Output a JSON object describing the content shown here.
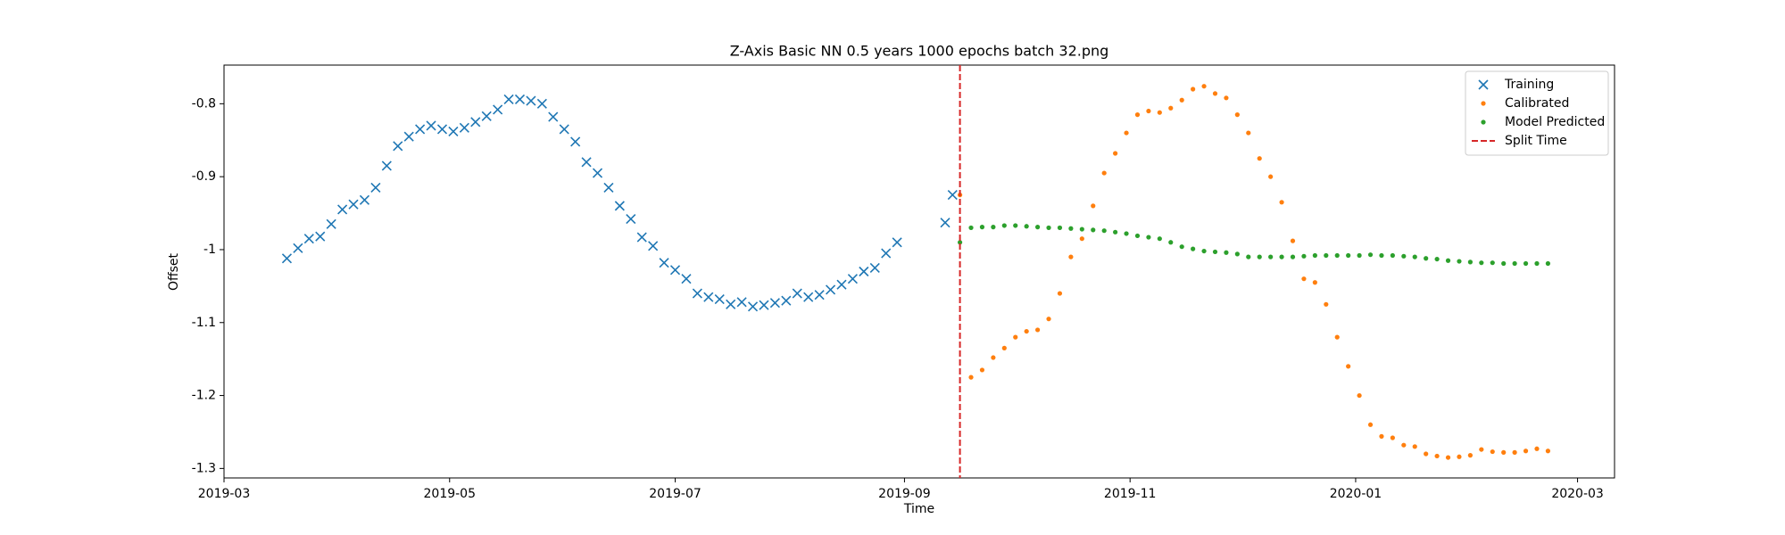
{
  "chart_data": {
    "type": "scatter",
    "title": "Z-Axis Basic NN 0.5 years 1000 epochs batch 32.png",
    "x_label": "Time",
    "y_label": "Offset",
    "xlim": [
      "2019-03-01",
      "2020-03-11"
    ],
    "ylim": [
      -1.313,
      -0.747
    ],
    "xticks": [
      {
        "value": "2019-03-01",
        "label": "2019-03"
      },
      {
        "value": "2019-05-01",
        "label": "2019-05"
      },
      {
        "value": "2019-07-01",
        "label": "2019-07"
      },
      {
        "value": "2019-09-01",
        "label": "2019-09"
      },
      {
        "value": "2019-11-01",
        "label": "2019-11"
      },
      {
        "value": "2020-01-01",
        "label": "2020-01"
      },
      {
        "value": "2020-03-01",
        "label": "2020-03"
      }
    ],
    "yticks": [
      -0.8,
      -0.9,
      -1.0,
      -1.1,
      -1.2,
      -1.3
    ],
    "legend": "upper right",
    "series": [
      {
        "name": "Training",
        "color": "#1f77b4",
        "marker": "x",
        "x": [
          "2019-03-18",
          "2019-03-21",
          "2019-03-24",
          "2019-03-27",
          "2019-03-30",
          "2019-04-02",
          "2019-04-05",
          "2019-04-08",
          "2019-04-11",
          "2019-04-14",
          "2019-04-17",
          "2019-04-20",
          "2019-04-23",
          "2019-04-26",
          "2019-04-29",
          "2019-05-02",
          "2019-05-05",
          "2019-05-08",
          "2019-05-11",
          "2019-05-14",
          "2019-05-17",
          "2019-05-20",
          "2019-05-23",
          "2019-05-26",
          "2019-05-29",
          "2019-06-01",
          "2019-06-04",
          "2019-06-07",
          "2019-06-10",
          "2019-06-13",
          "2019-06-16",
          "2019-06-19",
          "2019-06-22",
          "2019-06-25",
          "2019-06-28",
          "2019-07-01",
          "2019-07-04",
          "2019-07-07",
          "2019-07-10",
          "2019-07-13",
          "2019-07-16",
          "2019-07-19",
          "2019-07-22",
          "2019-07-25",
          "2019-07-28",
          "2019-07-31",
          "2019-08-03",
          "2019-08-06",
          "2019-08-09",
          "2019-08-12",
          "2019-08-15",
          "2019-08-18",
          "2019-08-21",
          "2019-08-24",
          "2019-08-27",
          "2019-08-30",
          "2019-09-12",
          "2019-09-14"
        ],
        "values": [
          -1.012,
          -0.998,
          -0.985,
          -0.982,
          -0.965,
          -0.945,
          -0.938,
          -0.932,
          -0.915,
          -0.885,
          -0.858,
          -0.845,
          -0.835,
          -0.83,
          -0.835,
          -0.838,
          -0.833,
          -0.825,
          -0.817,
          -0.808,
          -0.794,
          -0.794,
          -0.796,
          -0.8,
          -0.818,
          -0.835,
          -0.852,
          -0.88,
          -0.895,
          -0.915,
          -0.94,
          -0.958,
          -0.983,
          -0.995,
          -1.018,
          -1.028,
          -1.04,
          -1.06,
          -1.065,
          -1.068,
          -1.075,
          -1.072,
          -1.078,
          -1.076,
          -1.073,
          -1.07,
          -1.06,
          -1.065,
          -1.062,
          -1.055,
          -1.048,
          -1.04,
          -1.03,
          -1.025,
          -1.005,
          -0.99,
          -0.963,
          -0.925
        ]
      },
      {
        "name": "Calibrated",
        "color": "#ff7f0e",
        "marker": "dot",
        "x": [
          "2019-09-16",
          "2019-09-19",
          "2019-09-22",
          "2019-09-25",
          "2019-09-28",
          "2019-10-01",
          "2019-10-04",
          "2019-10-07",
          "2019-10-10",
          "2019-10-13",
          "2019-10-16",
          "2019-10-19",
          "2019-10-22",
          "2019-10-25",
          "2019-10-28",
          "2019-10-31",
          "2019-11-03",
          "2019-11-06",
          "2019-11-09",
          "2019-11-12",
          "2019-11-15",
          "2019-11-18",
          "2019-11-21",
          "2019-11-24",
          "2019-11-27",
          "2019-11-30",
          "2019-12-03",
          "2019-12-06",
          "2019-12-09",
          "2019-12-12",
          "2019-12-15",
          "2019-12-18",
          "2019-12-21",
          "2019-12-24",
          "2019-12-27",
          "2019-12-30",
          "2020-01-02",
          "2020-01-05",
          "2020-01-08",
          "2020-01-11",
          "2020-01-14",
          "2020-01-17",
          "2020-01-20",
          "2020-01-23",
          "2020-01-26",
          "2020-01-29",
          "2020-02-01",
          "2020-02-04",
          "2020-02-07",
          "2020-02-10",
          "2020-02-13",
          "2020-02-16",
          "2020-02-19",
          "2020-02-22"
        ],
        "values": [
          -0.925,
          -1.175,
          -1.165,
          -1.148,
          -1.135,
          -1.12,
          -1.112,
          -1.11,
          -1.095,
          -1.06,
          -1.01,
          -0.985,
          -0.94,
          -0.895,
          -0.868,
          -0.84,
          -0.815,
          -0.81,
          -0.812,
          -0.806,
          -0.795,
          -0.78,
          -0.776,
          -0.786,
          -0.792,
          -0.815,
          -0.84,
          -0.875,
          -0.9,
          -0.935,
          -0.988,
          -1.04,
          -1.045,
          -1.075,
          -1.12,
          -1.16,
          -1.2,
          -1.24,
          -1.256,
          -1.258,
          -1.268,
          -1.27,
          -1.28,
          -1.283,
          -1.285,
          -1.284,
          -1.282,
          -1.274,
          -1.277,
          -1.278,
          -1.278,
          -1.276,
          -1.273,
          -1.276
        ]
      },
      {
        "name": "Model Predicted",
        "color": "#2ca02c",
        "marker": "dot",
        "x": [
          "2019-09-16",
          "2019-09-19",
          "2019-09-22",
          "2019-09-25",
          "2019-09-28",
          "2019-10-01",
          "2019-10-04",
          "2019-10-07",
          "2019-10-10",
          "2019-10-13",
          "2019-10-16",
          "2019-10-19",
          "2019-10-22",
          "2019-10-25",
          "2019-10-28",
          "2019-10-31",
          "2019-11-03",
          "2019-11-06",
          "2019-11-09",
          "2019-11-12",
          "2019-11-15",
          "2019-11-18",
          "2019-11-21",
          "2019-11-24",
          "2019-11-27",
          "2019-11-30",
          "2019-12-03",
          "2019-12-06",
          "2019-12-09",
          "2019-12-12",
          "2019-12-15",
          "2019-12-18",
          "2019-12-21",
          "2019-12-24",
          "2019-12-27",
          "2019-12-30",
          "2020-01-02",
          "2020-01-05",
          "2020-01-08",
          "2020-01-11",
          "2020-01-14",
          "2020-01-17",
          "2020-01-20",
          "2020-01-23",
          "2020-01-26",
          "2020-01-29",
          "2020-02-01",
          "2020-02-04",
          "2020-02-07",
          "2020-02-10",
          "2020-02-13",
          "2020-02-16",
          "2020-02-19",
          "2020-02-22"
        ],
        "values": [
          -0.99,
          -0.97,
          -0.969,
          -0.969,
          -0.967,
          -0.967,
          -0.968,
          -0.969,
          -0.97,
          -0.97,
          -0.971,
          -0.972,
          -0.973,
          -0.974,
          -0.976,
          -0.978,
          -0.981,
          -0.983,
          -0.985,
          -0.99,
          -0.996,
          -0.999,
          -1.002,
          -1.003,
          -1.004,
          -1.006,
          -1.01,
          -1.01,
          -1.01,
          -1.01,
          -1.01,
          -1.009,
          -1.008,
          -1.008,
          -1.008,
          -1.008,
          -1.008,
          -1.007,
          -1.008,
          -1.008,
          -1.009,
          -1.01,
          -1.012,
          -1.013,
          -1.015,
          -1.016,
          -1.017,
          -1.018,
          -1.018,
          -1.019,
          -1.019,
          -1.019,
          -1.019,
          -1.019
        ]
      }
    ],
    "split": {
      "name": "Split Time",
      "x": "2019-09-16",
      "color": "#d62728"
    }
  }
}
